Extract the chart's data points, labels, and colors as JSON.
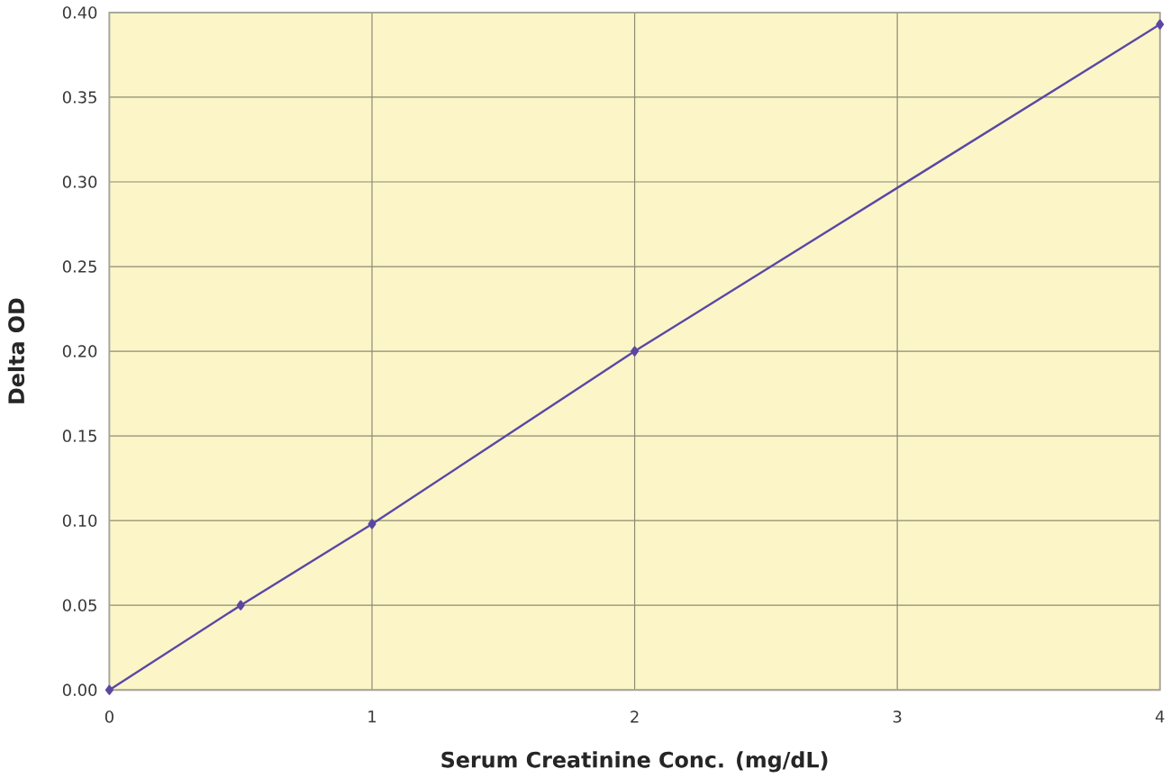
{
  "chart_data": {
    "type": "line",
    "xlabel": "Serum Creatinine Conc. (mg/dL)",
    "ylabel": "Delta OD",
    "x": [
      0,
      0.5,
      1,
      2,
      4
    ],
    "series": [
      {
        "color": "#5b47a3",
        "values": [
          0,
          0.05,
          0.098,
          0.2,
          0.393
        ]
      }
    ],
    "xlim": [
      0,
      4
    ],
    "xticks": [
      0,
      1,
      2,
      3,
      4
    ],
    "ylim": [
      0,
      0.4
    ],
    "yticks": [
      {
        "value": 0,
        "label": "0.00"
      },
      {
        "value": 0.05,
        "label": "0.05"
      },
      {
        "value": 0.1,
        "label": "0.10"
      },
      {
        "value": 0.15,
        "label": "0.15"
      },
      {
        "value": 0.2,
        "label": "0.20"
      },
      {
        "value": 0.25,
        "label": "0.25"
      },
      {
        "value": 0.3,
        "label": "0.30"
      },
      {
        "value": 0.35,
        "label": "0.35"
      },
      {
        "value": 0.4,
        "label": "0.40"
      }
    ],
    "grid": true,
    "marker": "diamond",
    "line_style": "solid"
  }
}
